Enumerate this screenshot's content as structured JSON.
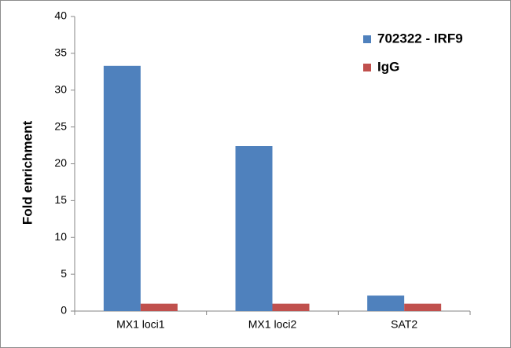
{
  "chart_data": {
    "type": "bar",
    "y_label": "Fold enrichment",
    "categories": [
      "MX1 loci1",
      "MX1 loci2",
      "SAT2"
    ],
    "series": [
      {
        "name": "702322 - IRF9",
        "color": "#4f81bd",
        "values": [
          33.3,
          22.4,
          2.1
        ]
      },
      {
        "name": "IgG",
        "color": "#c0504d",
        "values": [
          1,
          1,
          1
        ]
      }
    ],
    "ylim": [
      0,
      40
    ],
    "yticks": [
      0,
      5,
      10,
      15,
      20,
      25,
      30,
      35,
      40
    ],
    "grid": false,
    "legend": "upper right"
  }
}
